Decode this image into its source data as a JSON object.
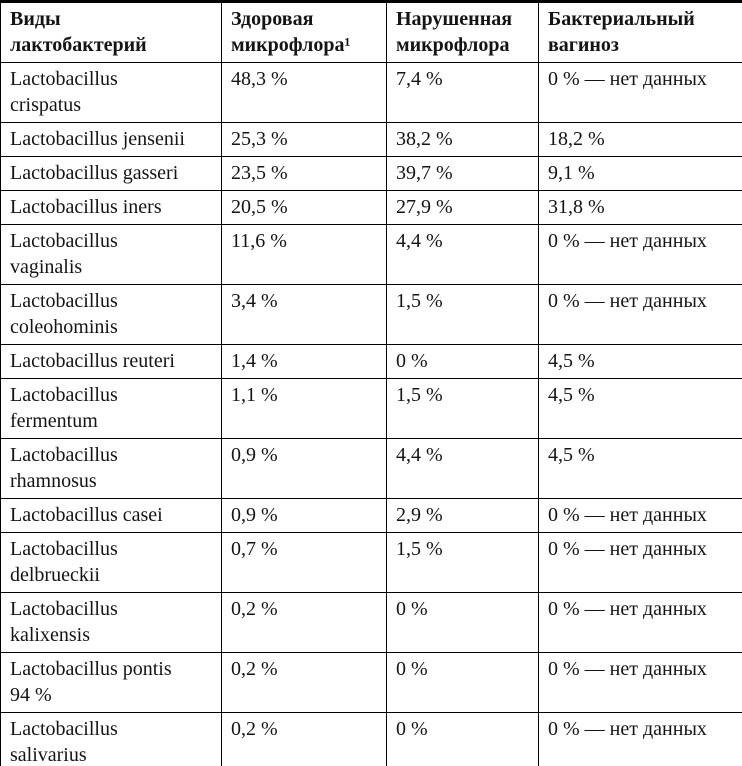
{
  "colors": {
    "background": "#ffffff",
    "text": "#141414",
    "border": "#000000"
  },
  "table": {
    "columns": [
      {
        "label": "Виды\nлактобактерий"
      },
      {
        "label": "Здоровая\nмикрофлора¹"
      },
      {
        "label": "Нарушенная\nмикрофлора"
      },
      {
        "label": "Бактериальный\nвагиноз"
      }
    ],
    "rows": [
      {
        "species": "Lactobacillus\ncrispatus",
        "healthy": "48,3 %",
        "disturbed": "7,4 %",
        "vaginosis": "0 % — нет данных"
      },
      {
        "species": "Lactobacillus jensenii",
        "healthy": "25,3 %",
        "disturbed": "38,2 %",
        "vaginosis": "18,2 %"
      },
      {
        "species": "Lactobacillus gasseri",
        "healthy": "23,5 %",
        "disturbed": "39,7 %",
        "vaginosis": "9,1 %"
      },
      {
        "species": "Lactobacillus iners",
        "healthy": "20,5 %",
        "disturbed": "27,9 %",
        "vaginosis": "31,8 %"
      },
      {
        "species": "Lactobacillus\nvaginalis",
        "healthy": "11,6 %",
        "disturbed": "4,4 %",
        "vaginosis": "0 % — нет данных"
      },
      {
        "species": "Lactobacillus\ncoleohominis",
        "healthy": "3,4 %",
        "disturbed": "1,5 %",
        "vaginosis": "0 % — нет данных"
      },
      {
        "species": "Lactobacillus reuteri",
        "healthy": "1,4 %",
        "disturbed": "0 %",
        "vaginosis": "4,5 %"
      },
      {
        "species": "Lactobacillus\nfermentum",
        "healthy": "1,1 %",
        "disturbed": "1,5 %",
        "vaginosis": "4,5 %"
      },
      {
        "species": "Lactobacillus\nrhamnosus",
        "healthy": "0,9 %",
        "disturbed": "4,4 %",
        "vaginosis": "4,5 %"
      },
      {
        "species": "Lactobacillus casei",
        "healthy": "0,9 %",
        "disturbed": "2,9 %",
        "vaginosis": "0 % — нет данных"
      },
      {
        "species": "Lactobacillus\ndelbrueckii",
        "healthy": "0,7 %",
        "disturbed": "1,5 %",
        "vaginosis": "0 % — нет данных"
      },
      {
        "species": "Lactobacillus\nkalixensis",
        "healthy": "0,2 %",
        "disturbed": "0 %",
        "vaginosis": "0 % — нет данных"
      },
      {
        "species": "Lactobacillus pontis\n94 %",
        "healthy": "0,2 %",
        "disturbed": "0 %",
        "vaginosis": "0 % — нет данных"
      },
      {
        "species": "Lactobacillus\nsalivarius",
        "healthy": "0,2 %",
        "disturbed": "0 %",
        "vaginosis": "0 % — нет данных"
      }
    ]
  }
}
